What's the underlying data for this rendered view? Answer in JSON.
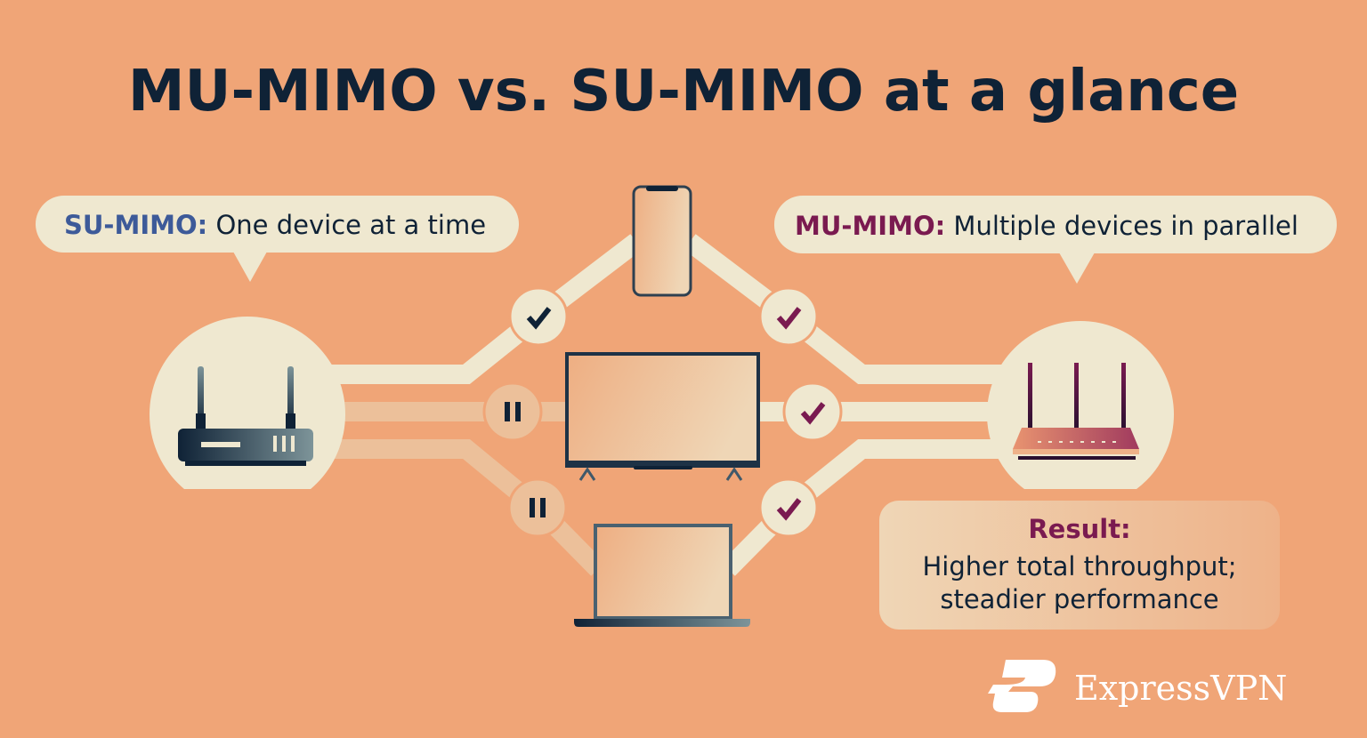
{
  "title": "MU-MIMO vs. SU-MIMO at a glance",
  "su_bubble": {
    "label": "SU-MIMO:",
    "text": " One device at a time"
  },
  "mu_bubble": {
    "label": "MU-MIMO:",
    "text": " Multiple devices in parallel"
  },
  "result": {
    "label": "Result:",
    "line1": "Higher total throughput;",
    "line2": "steadier performance"
  },
  "brand": "ExpressVPN",
  "su_links": [
    {
      "device": "phone",
      "status": "check-icon"
    },
    {
      "device": "tv",
      "status": "pause-icon"
    },
    {
      "device": "laptop",
      "status": "pause-icon"
    }
  ],
  "mu_links": [
    {
      "device": "phone",
      "status": "check-icon"
    },
    {
      "device": "tv",
      "status": "check-icon"
    },
    {
      "device": "laptop",
      "status": "check-icon"
    }
  ],
  "colors": {
    "background": "#f0a577",
    "cream": "#efe8d0",
    "navy": "#0f2236",
    "su_accent": "#3d5a99",
    "mu_accent": "#7a1a50",
    "inactive_path": "#ecc09a"
  }
}
